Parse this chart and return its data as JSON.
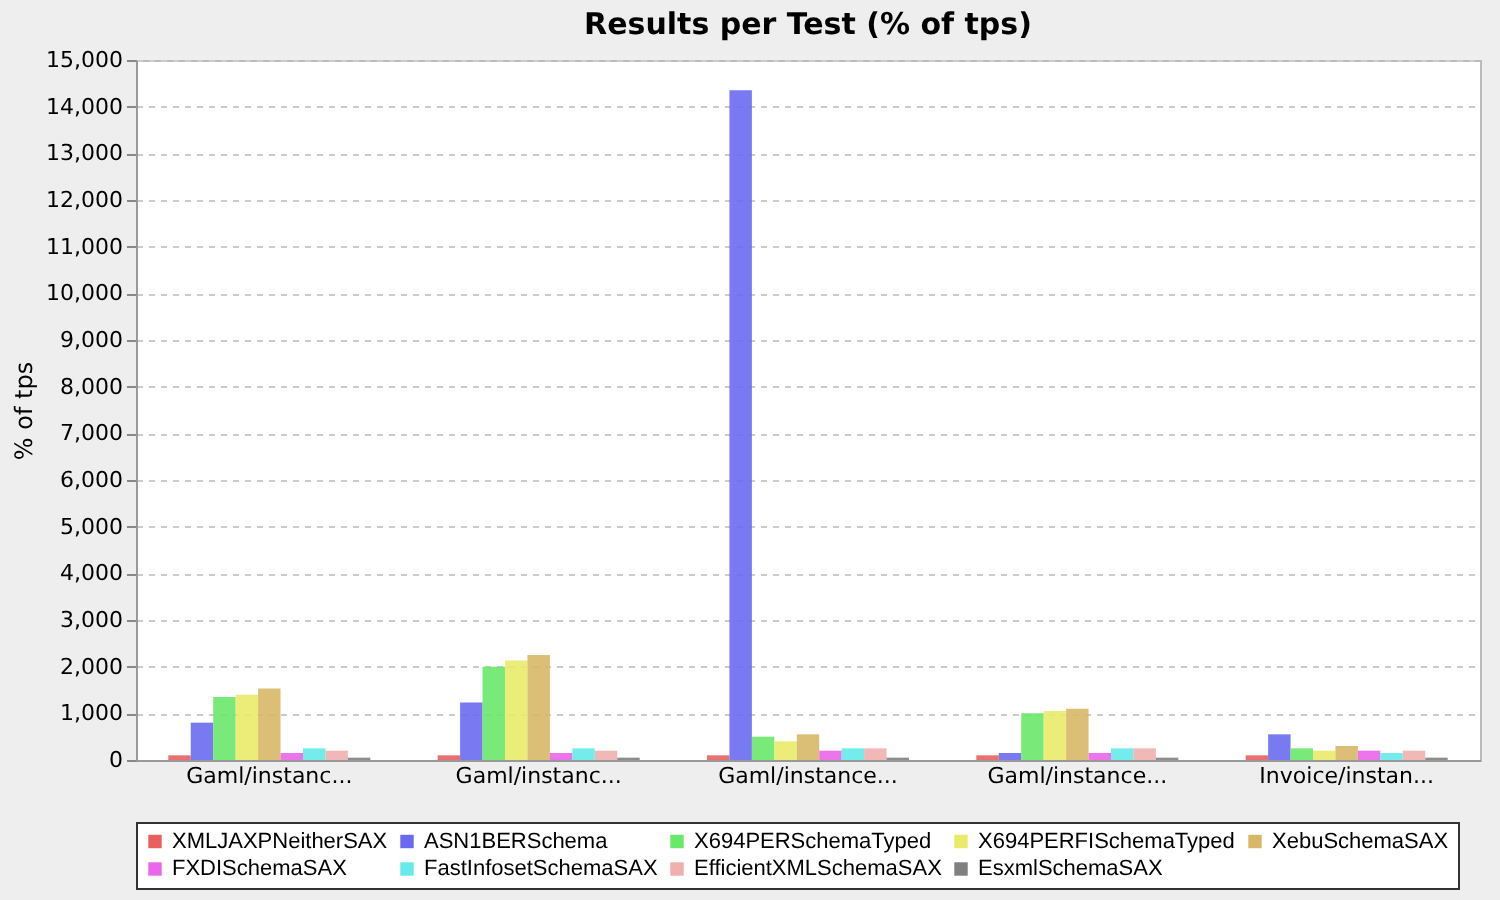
{
  "chart_data": {
    "type": "bar",
    "title": "Results per Test (% of tps)",
    "ylabel": "% of tps",
    "categories": [
      "Gaml/instanc...",
      "Gaml/instanc...",
      "Gaml/instance...",
      "Gaml/instance...",
      "Invoice/instan..."
    ],
    "series": [
      {
        "name": "XMLJAXPNeitherSAX",
        "color": "#e86060",
        "values": [
          100,
          100,
          100,
          100,
          100
        ]
      },
      {
        "name": "ASN1BERSchema",
        "color": "#6a6af0",
        "values": [
          800,
          1230,
          14350,
          150,
          550
        ]
      },
      {
        "name": "X694PERSchemaTyped",
        "color": "#6ae86a",
        "values": [
          1350,
          2000,
          500,
          1000,
          250
        ]
      },
      {
        "name": "X694PERFISchemaTyped",
        "color": "#eaea6a",
        "values": [
          1400,
          2130,
          400,
          1050,
          200
        ]
      },
      {
        "name": "XebuSchemaSAX",
        "color": "#d8b868",
        "values": [
          1530,
          2250,
          550,
          1100,
          300
        ]
      },
      {
        "name": "FXDISchemaSAX",
        "color": "#ea66ea",
        "values": [
          150,
          150,
          200,
          150,
          200
        ]
      },
      {
        "name": "FastInfosetSchemaSAX",
        "color": "#66eaea",
        "values": [
          250,
          250,
          250,
          250,
          150
        ]
      },
      {
        "name": "EfficientXMLSchemaSAX",
        "color": "#f0b0b0",
        "values": [
          200,
          200,
          250,
          250,
          200
        ]
      },
      {
        "name": "EsxmlSchemaSAX",
        "color": "#808080",
        "values": [
          50,
          50,
          50,
          50,
          50
        ]
      }
    ],
    "ylim": [
      0,
      15000
    ],
    "yticks": [
      0,
      {
        "value": 1000,
        "label": "1,000"
      },
      {
        "value": 2000,
        "label": "2,000"
      },
      {
        "value": 3000,
        "label": "3,000"
      },
      {
        "value": 4000,
        "label": "4,000"
      },
      {
        "value": 5000,
        "label": "5,000"
      },
      {
        "value": 6000,
        "label": "6,000"
      },
      {
        "value": 7000,
        "label": "7,000"
      },
      {
        "value": 8000,
        "label": "8,000"
      },
      {
        "value": 9000,
        "label": "9,000"
      },
      {
        "value": 10000,
        "label": "10,000"
      },
      {
        "value": 11000,
        "label": "11,000"
      },
      {
        "value": 12000,
        "label": "12,000"
      },
      {
        "value": 13000,
        "label": "13,000"
      },
      {
        "value": 14000,
        "label": "14,000"
      },
      {
        "value": 15000,
        "label": "15,000"
      }
    ],
    "grid": "y",
    "legend": "bottom"
  }
}
